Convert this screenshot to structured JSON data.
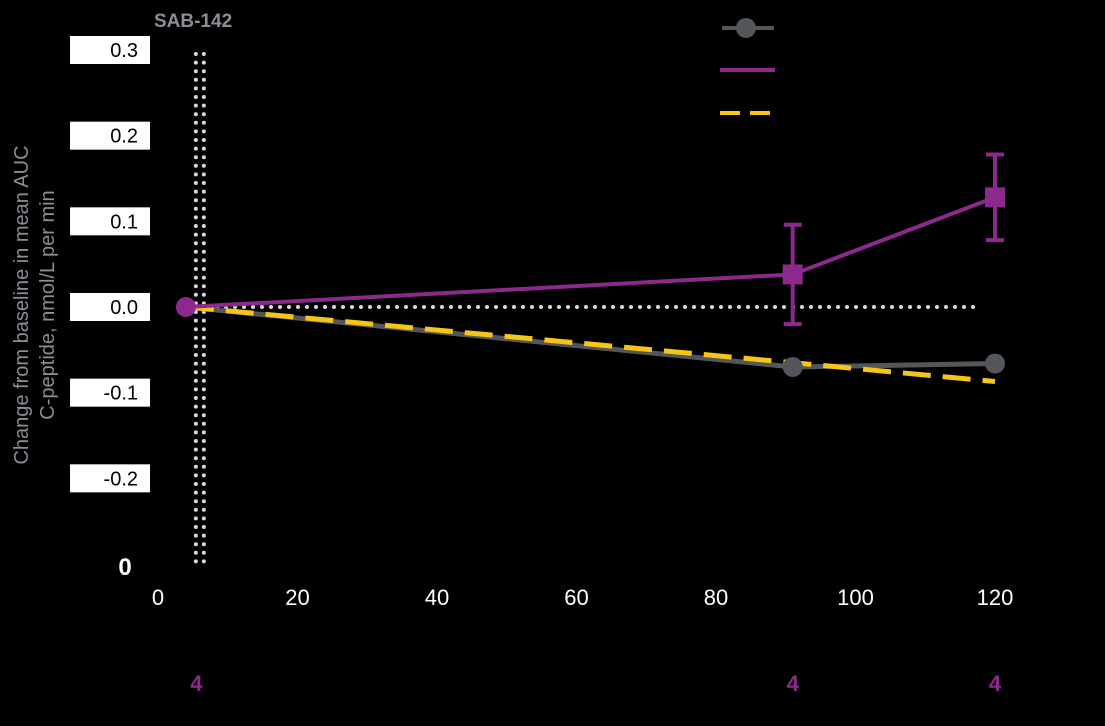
{
  "colors": {
    "background": "#000000",
    "grey_series": "#53565a",
    "purple_series": "#8b2a8c",
    "yellow_series": "#f5c518",
    "reference_dots": "#d9d9d9",
    "axis_label": "#8a8e96"
  },
  "chart_data": {
    "type": "line",
    "title": "",
    "annotation": "SAB-142",
    "xlabel": "",
    "ylabel": "Change from baseline in mean AUC C-peptide, nmol/L per min",
    "ylabel_lines": [
      "Change from baseline in mean AUC",
      "C-peptide, nmol/L per min"
    ],
    "xlim": [
      0,
      120
    ],
    "ylim": [
      -0.3,
      0.3
    ],
    "x_ticks": [
      "0",
      "20",
      "40",
      "60",
      "80",
      "100",
      "120"
    ],
    "x_tick_values": [
      0,
      20,
      40,
      60,
      80,
      100,
      120
    ],
    "y_ticks": [
      "0.3",
      "0.2",
      "0.1",
      "0.0",
      "-0.1",
      "-0.2"
    ],
    "y_tick_values": [
      0.3,
      0.2,
      0.1,
      0.0,
      -0.1,
      -0.2
    ],
    "y_bottom_label": "0",
    "grid": false,
    "legend": "top-right",
    "reference_lines": {
      "vertical_x": 6,
      "horizontal_y": 0.0
    },
    "series": [
      {
        "style": "grey-line-circle",
        "x": [
          4,
          91,
          120
        ],
        "y": [
          0.0,
          -0.07,
          -0.066
        ]
      },
      {
        "style": "purple-line-square",
        "x": [
          4,
          91,
          120
        ],
        "y": [
          0.0,
          0.038,
          0.128
        ],
        "error": [
          0.0,
          0.058,
          0.05
        ]
      },
      {
        "style": "yellow-dashed",
        "x": [
          4,
          91,
          120
        ],
        "y": [
          0.0,
          -0.065,
          -0.087
        ]
      }
    ],
    "n_labels": {
      "x": [
        5.5,
        91,
        120
      ],
      "values": [
        "4",
        "4",
        "4"
      ]
    }
  }
}
